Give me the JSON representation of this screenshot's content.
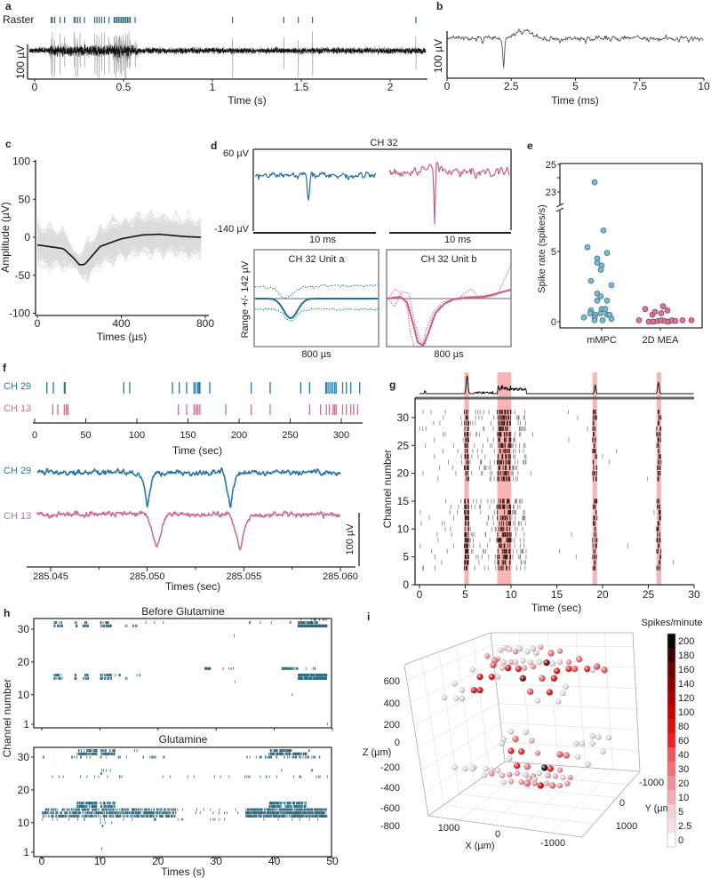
{
  "chart_data": [
    {
      "id": "a",
      "panel": "a",
      "type": "line",
      "raster_label": "Raster",
      "xlabel": "Time (s)",
      "ylabel": "100 µV",
      "xticks": [
        "0",
        "0.5",
        "1",
        "1.5",
        "2"
      ],
      "xlim": [
        0,
        2.2
      ],
      "raster_color": "#2e6e87",
      "spike_times": [
        0.093,
        0.1,
        0.113,
        0.143,
        0.168,
        0.222,
        0.23,
        0.242,
        0.255,
        0.28,
        0.338,
        0.35,
        0.363,
        0.377,
        0.392,
        0.418,
        0.447,
        0.455,
        0.463,
        0.472,
        0.48,
        0.488,
        0.497,
        0.505,
        0.513,
        0.522,
        0.53,
        0.538,
        0.565,
        1.113,
        1.402,
        1.483,
        1.563,
        2.145
      ]
    },
    {
      "id": "b",
      "panel": "b",
      "type": "line",
      "xlabel": "Time (ms)",
      "ylabel": "100 µV",
      "xticks": [
        "0",
        "2.5",
        "5",
        "7.5",
        "10"
      ],
      "xlim": [
        0,
        10
      ],
      "spike_time_ms": 2.2
    },
    {
      "id": "c",
      "panel": "c",
      "type": "line",
      "xlabel": "Times (µs)",
      "ylabel": "Amplitude (µV)",
      "xticks": [
        "0",
        "400",
        "800"
      ],
      "yticks": [
        "100",
        "50",
        "0",
        "-50",
        "-100"
      ],
      "xlim": [
        0,
        800
      ],
      "ylim": [
        -100,
        100
      ],
      "mean_waveform": {
        "x": [
          0,
          125,
          175,
          200,
          225,
          300,
          400,
          500,
          580,
          700,
          780
        ],
        "y": [
          -10,
          -15,
          -28,
          -36,
          -36,
          -12,
          -2,
          3,
          4,
          1,
          0
        ]
      }
    },
    {
      "id": "d",
      "panel": "d",
      "type": "line",
      "title": "CH 32",
      "y_top_label": "60 µV",
      "y_bottom_label": "-140 µV",
      "ylim": [
        -140,
        60
      ],
      "time_scale_labels": [
        "10 ms",
        "10 ms"
      ],
      "unit_ylabel": "Range +/- 142  µV",
      "units": [
        {
          "title": "CH 32 Unit a",
          "time_scale": "800 µs",
          "color": "#1f6f9f"
        },
        {
          "title": "CH 32 Unit b",
          "time_scale": "800 µs",
          "color": "#c8607f"
        }
      ]
    },
    {
      "id": "e",
      "panel": "e",
      "type": "scatter",
      "ylabel": "Spike rate (spikes/s)",
      "categories": [
        "mMPC",
        "2D MEA"
      ],
      "yticks": [
        "25",
        "23",
        "5",
        "0"
      ],
      "series": [
        {
          "name": "mMPC",
          "color": "#7fb6cc",
          "values": [
            23.7,
            6.5,
            5.3,
            4.9,
            4.5,
            4.2,
            4.0,
            3.7,
            2.9,
            2.6,
            2.0,
            1.8,
            1.5,
            1.5,
            0.8,
            0.9,
            0.9,
            0.6,
            0.5,
            0.6,
            0.5,
            0.5,
            0.3,
            0.3,
            0.2,
            0.1,
            0.1
          ]
        },
        {
          "name": "2D MEA",
          "color": "#d07a97",
          "values": [
            0.9,
            0.1,
            0.5,
            0.6,
            0.8,
            1.1,
            0.7,
            0.1,
            0.0,
            0.0,
            0.05,
            0.1,
            0.05,
            0.0,
            0.1,
            0.05,
            0.1
          ]
        }
      ]
    },
    {
      "id": "f",
      "panel": "f",
      "type": "raster",
      "channels": [
        {
          "name": "CH 29",
          "color": "#2a77a5",
          "spike_times": [
            11.9,
            18.3,
            29.0,
            29.8,
            87.2,
            93.0,
            134.8,
            141.5,
            148.7,
            155.9,
            157.5,
            159.7,
            160.9,
            161.7,
            171.3,
            211.9,
            230.4,
            260.3,
            269.0,
            284.9,
            286.0,
            287.8,
            289.8,
            291.5,
            293.5,
            295.0,
            301.3,
            305.0,
            309.3,
            318.0
          ],
          "trace_spikes": [
            285.05,
            285.0543
          ]
        },
        {
          "name": "CH 13",
          "color": "#c8708d",
          "spike_times": [
            17.7,
            22.6,
            29.0,
            31.0,
            32.5,
            140.6,
            148.7,
            155.9,
            157.9,
            159.7,
            161.7,
            187.0,
            211.9,
            230.4,
            269.0,
            279.7,
            285.4,
            288.3,
            292.0,
            293.5,
            295.0,
            301.3,
            305.0,
            309.3,
            312.0,
            316.0
          ],
          "trace_spikes": [
            285.0505,
            285.0548
          ]
        }
      ],
      "raster_xlabel": "Time (sec)",
      "raster_xticks": [
        "0",
        "50",
        "100",
        "150",
        "200",
        "250",
        "300"
      ],
      "trace_xlabel": "Times (sec)",
      "trace_xticks": [
        "285.045",
        "285.050",
        "285.055",
        "285.060"
      ],
      "scale_label": "100 µV"
    },
    {
      "id": "g",
      "panel": "g",
      "type": "raster",
      "xlabel": "Time (sec)",
      "ylabel": "Channel number",
      "xticks": [
        "0",
        "5",
        "10",
        "15",
        "20",
        "25",
        "30"
      ],
      "yticks": [
        "0",
        "5",
        "10",
        "15",
        "20",
        "25",
        "30"
      ],
      "xlim": [
        0,
        30
      ],
      "ylim": [
        0,
        30
      ],
      "highlight_color": "#f7a3a3",
      "highlighted_windows": [
        [
          4.9,
          5.4
        ],
        [
          8.5,
          10.0
        ],
        [
          18.9,
          19.4
        ],
        [
          25.9,
          26.4
        ]
      ],
      "active_channels": [
        3,
        4,
        5,
        6,
        7,
        8,
        9,
        10,
        11,
        12,
        13,
        14,
        15,
        19,
        20,
        21,
        22,
        23,
        24,
        25,
        26,
        27,
        28,
        29,
        30,
        31
      ],
      "activity_windows": [
        {
          "start": 0,
          "end": 4.8,
          "spikes_per_channel": 2
        },
        {
          "start": 4.9,
          "end": 5.4,
          "spikes_per_channel": 6
        },
        {
          "start": 5.5,
          "end": 8.4,
          "spikes_per_channel": 4
        },
        {
          "start": 8.5,
          "end": 10.0,
          "spikes_per_channel": 12
        },
        {
          "start": 10.0,
          "end": 11.7,
          "spikes_per_channel": 5
        },
        {
          "start": 12.0,
          "end": 28.0,
          "spikes_per_channel": 0.6
        },
        {
          "start": 18.9,
          "end": 19.4,
          "spikes_per_channel": 3
        },
        {
          "start": 25.9,
          "end": 26.4,
          "spikes_per_channel": 3
        }
      ]
    },
    {
      "id": "h",
      "panel": "h",
      "type": "raster",
      "xlabel": "Times (s)",
      "ylabel": "Channel number",
      "xticks": [
        "0",
        "10",
        "20",
        "30",
        "40",
        "50"
      ],
      "yticks": [
        "30",
        "20",
        "10",
        "1"
      ],
      "color": "#2f6a80",
      "window_columns": [
        "channel",
        "start_s",
        "end_s",
        "spikes_per_s"
      ],
      "plots": [
        {
          "title": "Before Glutamine",
          "windows": [
            [
              32,
              2,
              3.5,
              6
            ],
            [
              31,
              2,
              3.5,
              10
            ],
            [
              32,
              5.5,
              6.2,
              6
            ],
            [
              31,
              5.5,
              6,
              10
            ],
            [
              32,
              7.2,
              7.8,
              8
            ],
            [
              31,
              7,
              8,
              10
            ],
            [
              32,
              10,
              11.5,
              8
            ],
            [
              31,
              10,
              12,
              12
            ],
            [
              31,
              14.3,
              14.6,
              8
            ],
            [
              31,
              15,
              17.5,
              2
            ],
            [
              32,
              17,
              22,
              0.5
            ],
            [
              32,
              35,
              45,
              0.6
            ],
            [
              32,
              44,
              47.5,
              14
            ],
            [
              31,
              44,
              49,
              30
            ],
            [
              33,
              44,
              49,
              3
            ],
            [
              28,
              33,
              33.3,
              4
            ],
            [
              18,
              28,
              29,
              20
            ],
            [
              18,
              31,
              33,
              2
            ],
            [
              18,
              41,
              44,
              12
            ],
            [
              18,
              45,
              47,
              2
            ],
            [
              16,
              2,
              3.5,
              8
            ],
            [
              15,
              2,
              3.5,
              8
            ],
            [
              16,
              5.5,
              6,
              8
            ],
            [
              15,
              5.5,
              6,
              8
            ],
            [
              16,
              7,
              8,
              8
            ],
            [
              15,
              7,
              8,
              8
            ],
            [
              16,
              10,
              12,
              10
            ],
            [
              15,
              10,
              12,
              10
            ],
            [
              16,
              12.5,
              13.5,
              4
            ],
            [
              15,
              14.3,
              14.6,
              6
            ],
            [
              16,
              16,
              17,
              3
            ],
            [
              16,
              44,
              49,
              30
            ],
            [
              15,
              44,
              49,
              30
            ],
            [
              14,
              33,
              33.3,
              3
            ],
            [
              10,
              43,
              43.2,
              3
            ],
            [
              1,
              49,
              49.2,
              6
            ]
          ]
        },
        {
          "title": "Glutamine",
          "windows": [
            [
              32,
              6,
              9.5,
              8
            ],
            [
              31,
              6,
              9.5,
              14
            ],
            [
              32,
              10,
              12.5,
              8
            ],
            [
              31,
              10,
              12.5,
              14
            ],
            [
              32,
              39,
              43,
              12
            ],
            [
              31,
              39,
              45.5,
              16
            ],
            [
              30,
              0,
              0.3,
              6
            ],
            [
              30,
              4,
              25,
              1.2
            ],
            [
              30,
              35,
              48,
              4
            ],
            [
              32,
              12,
              20,
              0.3
            ],
            [
              32,
              44,
              47,
              0.5
            ],
            [
              26,
              10,
              12,
              2
            ],
            [
              25,
              10,
              10.3,
              6
            ],
            [
              24,
              0,
              50,
              0.7
            ],
            [
              26,
              38,
              47,
              0.3
            ],
            [
              16,
              6,
              9.5,
              14
            ],
            [
              15,
              6,
              9.5,
              14
            ],
            [
              16,
              10,
              12.5,
              10
            ],
            [
              15,
              10,
              12.5,
              10
            ],
            [
              16,
              39,
              45.5,
              12
            ],
            [
              15,
              39,
              45.5,
              12
            ],
            [
              14,
              0,
              23,
              8
            ],
            [
              13,
              0,
              23,
              10
            ],
            [
              12,
              0,
              23,
              8
            ],
            [
              14,
              23,
              35,
              0.6
            ],
            [
              13,
              23,
              35,
              0.6
            ],
            [
              14,
              35,
              49,
              14
            ],
            [
              13,
              35,
              49,
              18
            ],
            [
              12,
              35,
              49,
              14
            ],
            [
              11,
              0,
              49,
              0.6
            ],
            [
              10,
              10,
              12,
              1.5
            ],
            [
              9,
              10,
              11,
              2
            ],
            [
              2,
              10,
              10.3,
              3
            ]
          ]
        }
      ]
    },
    {
      "id": "i",
      "panel": "i",
      "type": "scatter3d",
      "colorbar_title": "Spikes/minute",
      "colorbar_ticks": [
        "200",
        "180",
        "160",
        "140",
        "120",
        "100",
        "80",
        "60",
        "40",
        "30",
        "20",
        "10",
        "5",
        "2.5",
        "0"
      ],
      "zlabel": "Z (µm)",
      "xlabel": "X (µm)",
      "ylabel": "Y (µm)",
      "z_ticks": [
        "600",
        "400",
        "200",
        "0",
        "-200",
        "-400",
        "-600",
        "-800"
      ],
      "x_ticks": [
        "1000",
        "0",
        "-1000"
      ],
      "y_ticks": [
        "-1000",
        "0",
        "1000"
      ],
      "rates": [
        5,
        10,
        5,
        20,
        5,
        2.5,
        5,
        10,
        5,
        30,
        20,
        20,
        30,
        10,
        5,
        10,
        5,
        2.5,
        5,
        2.5,
        160,
        2.5,
        5,
        20,
        30,
        2.5,
        40,
        5,
        80,
        60,
        10,
        20,
        80,
        60,
        40,
        60,
        2.5,
        40,
        40,
        80,
        80,
        5,
        140,
        40,
        80,
        2.5,
        2.5,
        2.5,
        80,
        80,
        40,
        80,
        2.5,
        2.5,
        2.5,
        2.5,
        2.5,
        2.5,
        2.5,
        2.5,
        2.5,
        30,
        10,
        2.5,
        2.5,
        2.5,
        2.5,
        2.5,
        2.5,
        2.5,
        60,
        60,
        20,
        40,
        30,
        2.5,
        2.5,
        2.5,
        2.5,
        2.5,
        2.5,
        2.5,
        2.5,
        2.5,
        5,
        2.5,
        60,
        30,
        200,
        60,
        20,
        2.5,
        2.5,
        20,
        10,
        20,
        10,
        5,
        20,
        10,
        10,
        5,
        20,
        2.5,
        10,
        20,
        30,
        20,
        100,
        10,
        30,
        20,
        20,
        10,
        5
      ]
    }
  ]
}
